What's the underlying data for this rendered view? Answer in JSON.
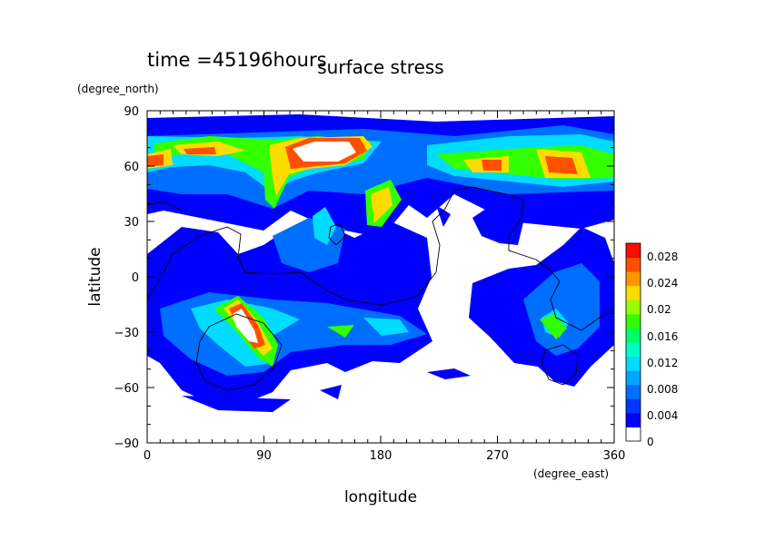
{
  "chart_data": {
    "type": "heatmap",
    "title": "surface stress",
    "time_label": "time =45196hours",
    "xlabel": "longitude",
    "ylabel": "latitude",
    "x_units": "(degree_east)",
    "y_units": "(degree_north)",
    "xlim": [
      0,
      360
    ],
    "ylim": [
      -90,
      90
    ],
    "x_ticks": [
      "0",
      "90",
      "180",
      "270",
      "360"
    ],
    "y_ticks": [
      "90",
      "60",
      "30",
      "0",
      "−30",
      "−60",
      "−90"
    ],
    "grid": false,
    "colorbar": {
      "position": "right",
      "min": 0,
      "max": 0.03,
      "tick_labels": [
        "0.028",
        "0.024",
        "0.02",
        "0.016",
        "0.012",
        "0.008",
        "0.004",
        "0"
      ],
      "colors": [
        "#ffffff",
        "#0000ff",
        "#0037ff",
        "#006eff",
        "#00a5ff",
        "#00dcff",
        "#00ffc8",
        "#00ff64",
        "#32ff00",
        "#96ff00",
        "#fadc00",
        "#ff9600",
        "#ff5000",
        "#ff0a00"
      ]
    },
    "field_description": "surface stress magnitude over longitude/latitude",
    "hotspots": [
      {
        "lon": 120,
        "lat": 65,
        "value": 0.03
      },
      {
        "lon": 80,
        "lat": 65,
        "value": 0.022
      },
      {
        "lon": 20,
        "lat": 64,
        "value": 0.022
      },
      {
        "lon": 310,
        "lat": 58,
        "value": 0.022
      },
      {
        "lon": 265,
        "lat": 58,
        "value": 0.02
      },
      {
        "lon": 100,
        "lat": 50,
        "value": 0.016
      },
      {
        "lon": 180,
        "lat": 40,
        "value": 0.022
      },
      {
        "lon": 75,
        "lat": -30,
        "value": 0.03
      },
      {
        "lon": 80,
        "lat": -45,
        "value": 0.016
      },
      {
        "lon": 310,
        "lat": -28,
        "value": 0.018
      },
      {
        "lon": 140,
        "lat": -30,
        "value": 0.01
      },
      {
        "lon": 30,
        "lat": -30,
        "value": 0.01
      }
    ]
  }
}
